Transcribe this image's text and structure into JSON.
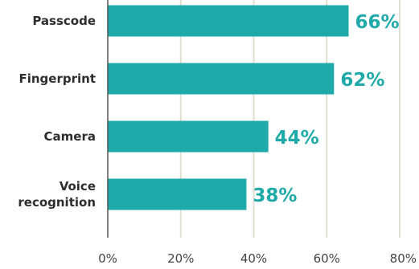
{
  "chart_data": {
    "type": "bar",
    "orientation": "horizontal",
    "categories": [
      [
        "Passcode"
      ],
      [
        "Fingerprint"
      ],
      [
        "Camera"
      ],
      [
        "Voice",
        "recognition"
      ]
    ],
    "values": [
      66,
      62,
      44,
      38
    ],
    "value_labels": [
      "66%",
      "62%",
      "44%",
      "38%"
    ],
    "x_ticks": [
      0,
      20,
      40,
      60,
      80
    ],
    "x_tick_labels": [
      "0%",
      "20%",
      "40%",
      "60%",
      "80%"
    ],
    "xlim": [
      0,
      80
    ],
    "grid": "vertical",
    "title": "",
    "xlabel": "",
    "ylabel": "",
    "colors": {
      "bar": "#1fa9a9",
      "value_label": "#1fa9a9",
      "grid": "#e2ddd2",
      "axis": "#555555"
    }
  }
}
